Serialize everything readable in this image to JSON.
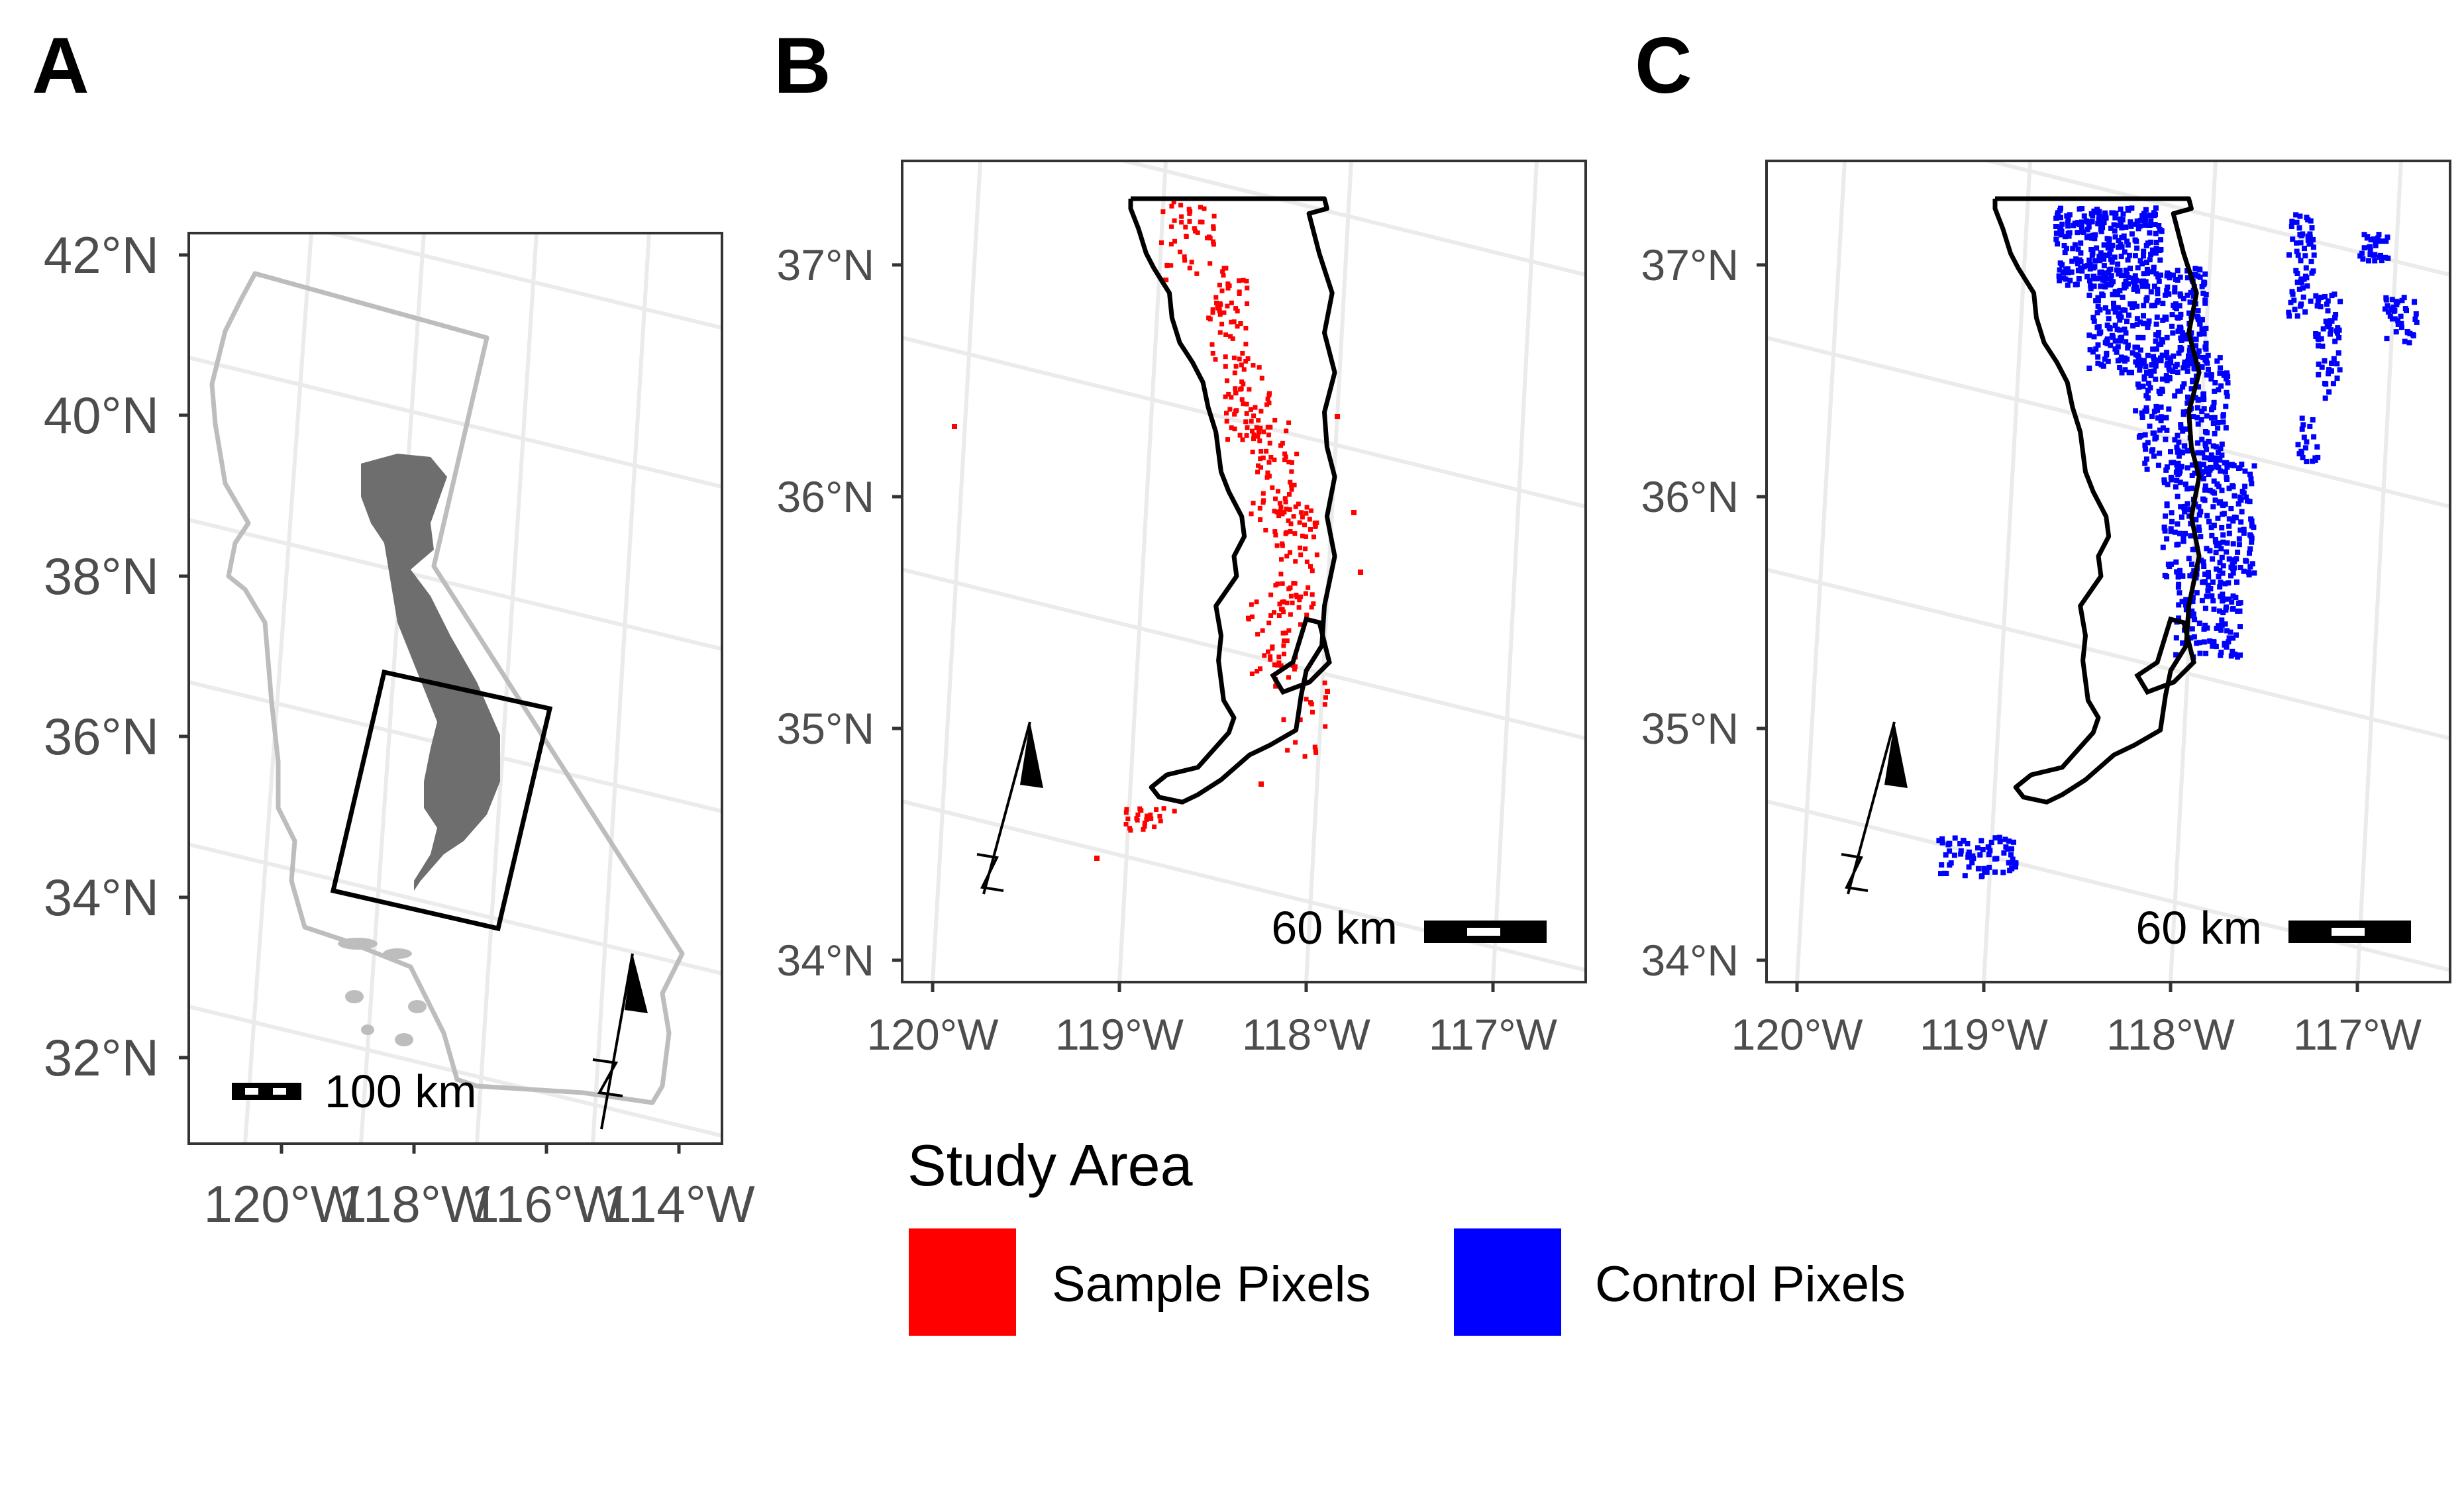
{
  "colors": {
    "grid": "#ebebeb",
    "panel_border": "#333333",
    "state_outline": "#bdbdbd",
    "region_fill": "#6e6e6e",
    "study_outline": "#000000",
    "sample": "#ff0000",
    "control": "#0000ff"
  },
  "panels": {
    "A": {
      "letter": "A",
      "y_ticks": [
        "42°N",
        "40°N",
        "38°N",
        "36°N",
        "34°N",
        "32°N"
      ],
      "x_ticks": [
        "120°W",
        "118°W",
        "116°W",
        "114°W"
      ],
      "scale_bar": "100 km"
    },
    "B": {
      "letter": "B",
      "y_ticks": [
        "37°N",
        "36°N",
        "35°N",
        "34°N"
      ],
      "x_ticks": [
        "120°W",
        "119°W",
        "118°W",
        "117°W"
      ],
      "scale_bar": "60 km"
    },
    "C": {
      "letter": "C",
      "y_ticks": [
        "37°N",
        "36°N",
        "35°N",
        "34°N"
      ],
      "x_ticks": [
        "120°W",
        "119°W",
        "118°W",
        "117°W"
      ],
      "scale_bar": "60 km"
    }
  },
  "legend": {
    "title": "Study Area",
    "items": [
      {
        "label": "Sample Pixels",
        "color": "#ff0000"
      },
      {
        "label": "Control Pixels",
        "color": "#0000ff"
      }
    ]
  }
}
